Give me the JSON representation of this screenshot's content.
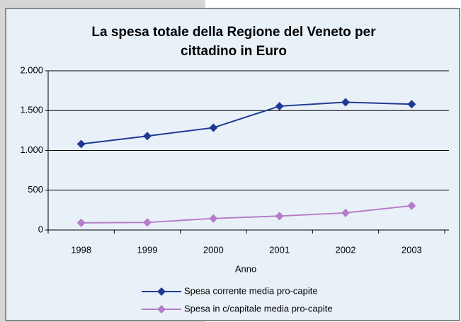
{
  "chart_data": {
    "type": "line",
    "title": "La spesa totale della Regione del Veneto per cittadino in Euro",
    "x_label": "Anno",
    "categories": [
      "1998",
      "1999",
      "2000",
      "2001",
      "2002",
      "2003"
    ],
    "series": [
      {
        "name": "Spesa corrente media pro-capite",
        "color": "#1f3a93",
        "values": [
          1080,
          1180,
          1285,
          1555,
          1605,
          1580
        ]
      },
      {
        "name": "Spesa in c/capitale media pro-capite",
        "color": "#b57cc9",
        "values": [
          90,
          95,
          145,
          175,
          215,
          305
        ]
      }
    ],
    "ylim": [
      0,
      2000
    ],
    "yticks": [
      0,
      500,
      {
        "value": 1000,
        "label": "1.000"
      },
      {
        "value": 1500,
        "label": "1.500"
      },
      {
        "value": 2000,
        "label": "2.000"
      }
    ],
    "grid": true
  }
}
